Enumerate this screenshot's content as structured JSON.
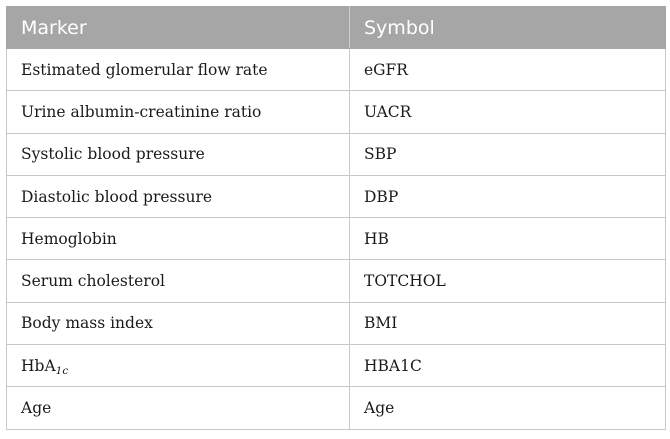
{
  "table": {
    "headers": [
      "Marker",
      "Symbol"
    ],
    "rows": [
      {
        "marker": "Estimated glomerular flow rate",
        "symbol": "eGFR"
      },
      {
        "marker": "Urine albumin-creatinine ratio",
        "symbol": "UACR"
      },
      {
        "marker": "Systolic blood pressure",
        "symbol": "SBP"
      },
      {
        "marker": "Diastolic blood pressure",
        "symbol": "DBP"
      },
      {
        "marker": "Hemoglobin",
        "symbol": "HB"
      },
      {
        "marker": "Serum cholesterol",
        "symbol": "TOTCHOL"
      },
      {
        "marker": "Body mass index",
        "symbol": "BMI"
      },
      {
        "marker": "HbA",
        "marker_subscript": "1c",
        "symbol": "HBA1C"
      },
      {
        "marker": "Age",
        "symbol": "Age"
      }
    ]
  }
}
